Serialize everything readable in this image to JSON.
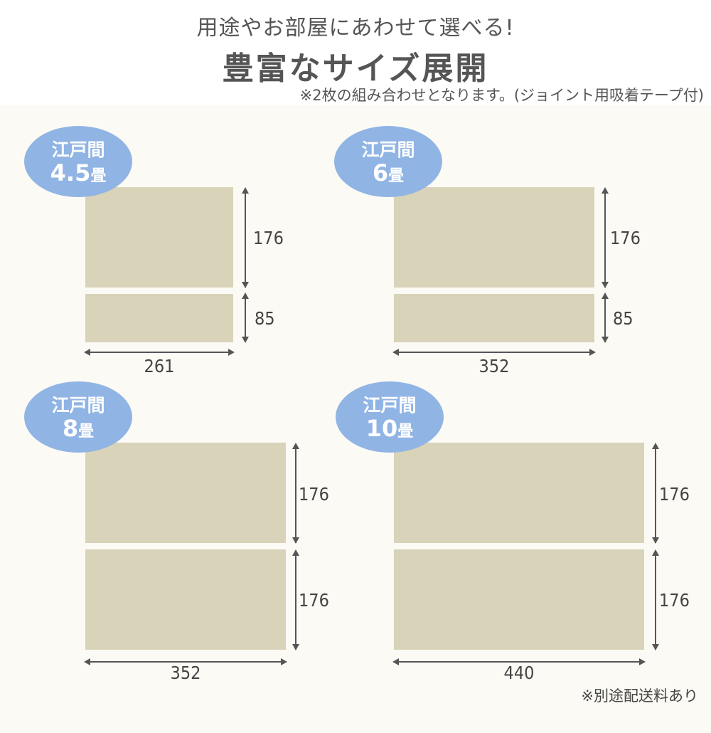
{
  "header": {
    "subtitle": "用途やお部屋にあわせて選べる!",
    "title": "豊富なサイズ展開",
    "note": "※2枚の組み合わせとなります。(ジョイント用吸着テープ付)"
  },
  "sizes": [
    {
      "label": "江戸間",
      "size": "4.5",
      "unit": "畳",
      "width": "261",
      "heights": [
        "176",
        "85"
      ]
    },
    {
      "label": "江戸間",
      "size": "6",
      "unit": "畳",
      "width": "352",
      "heights": [
        "176",
        "85"
      ]
    },
    {
      "label": "江戸間",
      "size": "8",
      "unit": "畳",
      "width": "352",
      "heights": [
        "176",
        "176"
      ]
    },
    {
      "label": "江戸間",
      "size": "10",
      "unit": "畳",
      "width": "440",
      "heights": [
        "176",
        "176"
      ]
    }
  ],
  "footer": {
    "note": "※別途配送料あり"
  },
  "colors": {
    "mat": "#d8d3b9",
    "badge": "#90b4e4",
    "panel": "#fcfaf4",
    "text": "#555555"
  }
}
